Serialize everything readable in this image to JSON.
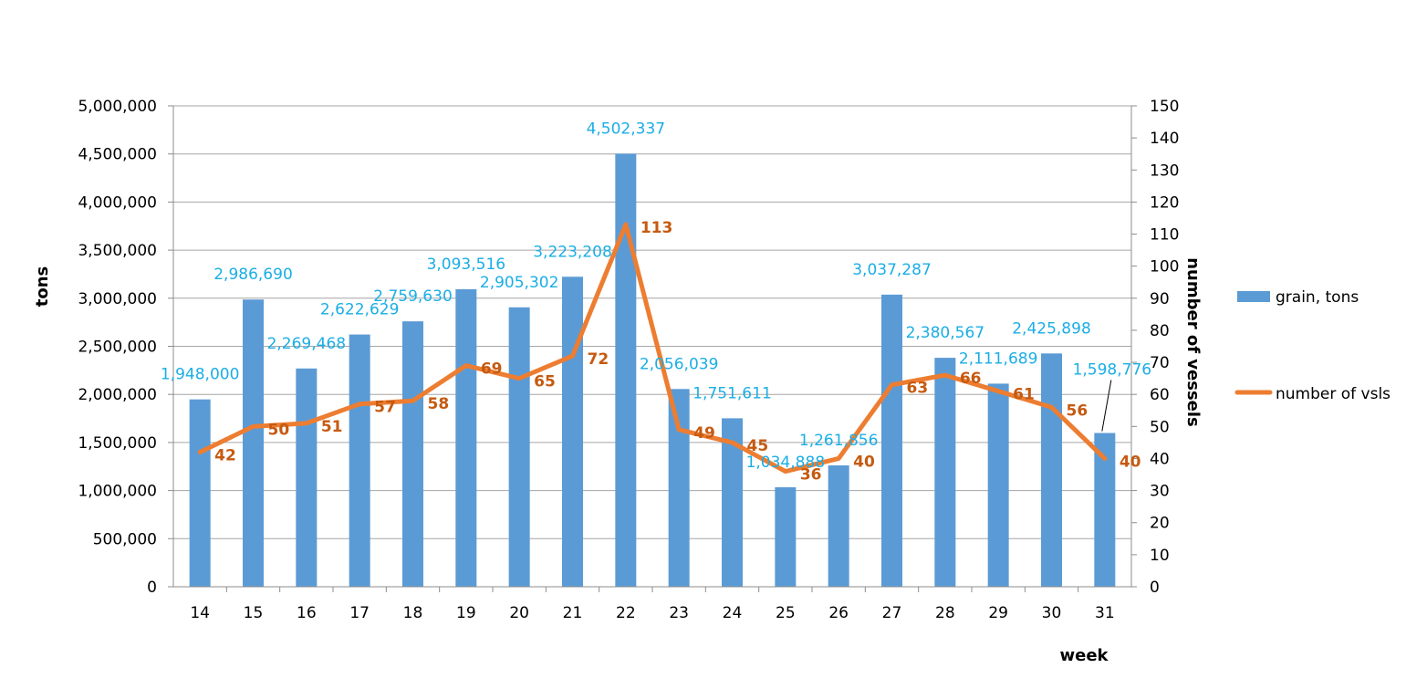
{
  "chart_data": {
    "type": "bar",
    "categories": [
      "14",
      "15",
      "16",
      "17",
      "18",
      "19",
      "20",
      "21",
      "22",
      "23",
      "24",
      "25",
      "26",
      "27",
      "28",
      "29",
      "30",
      "31"
    ],
    "series": [
      {
        "name": "grain, tons",
        "type": "bar",
        "axis": "left",
        "color": "#5B9BD5",
        "label_color": "#1AAEE5",
        "values": [
          1948000,
          2986690,
          2269468,
          2622629,
          2759630,
          3093516,
          2905302,
          3223208,
          4502337,
          2056039,
          1751611,
          1034888,
          1261856,
          3037287,
          2380567,
          2111689,
          2425898,
          1598776
        ],
        "labels": [
          "1,948,000",
          "2,986,690",
          "2,269,468",
          "2,622,629",
          "2,759,630",
          "3,093,516",
          "2,905,302",
          "3,223,208",
          "4,502,337",
          "2,056,039",
          "1,751,611",
          "1,034,888",
          "1,261,856",
          "3,037,287",
          "2,380,567",
          "2,111,689",
          "2,425,898",
          "1,598,776"
        ]
      },
      {
        "name": "number of vsls",
        "type": "line",
        "axis": "right",
        "color": "#ED7D31",
        "label_color": "#C55A11",
        "values": [
          42,
          50,
          51,
          57,
          58,
          69,
          65,
          72,
          113,
          49,
          45,
          36,
          40,
          63,
          66,
          61,
          56,
          40
        ],
        "labels": [
          "42",
          "50",
          "51",
          "57",
          "58",
          "69",
          "65",
          "72",
          "113",
          "49",
          "45",
          "36",
          "40",
          "63",
          "66",
          "61",
          "56",
          "40"
        ]
      }
    ],
    "xlabel": "week",
    "ylabel": "tons",
    "y2label": "number of vessels",
    "ylim": [
      0,
      5000000
    ],
    "y2lim": [
      0,
      150
    ],
    "yticks": [
      "0",
      "500,000",
      "1,000,000",
      "1,500,000",
      "2,000,000",
      "2,500,000",
      "3,000,000",
      "3,500,000",
      "4,000,000",
      "4,500,000",
      "5,000,000"
    ],
    "y2ticks": [
      "0",
      "10",
      "20",
      "30",
      "40",
      "50",
      "60",
      "70",
      "80",
      "90",
      "100",
      "110",
      "120",
      "130",
      "140",
      "150"
    ],
    "grid": true,
    "legend_position": "right"
  }
}
